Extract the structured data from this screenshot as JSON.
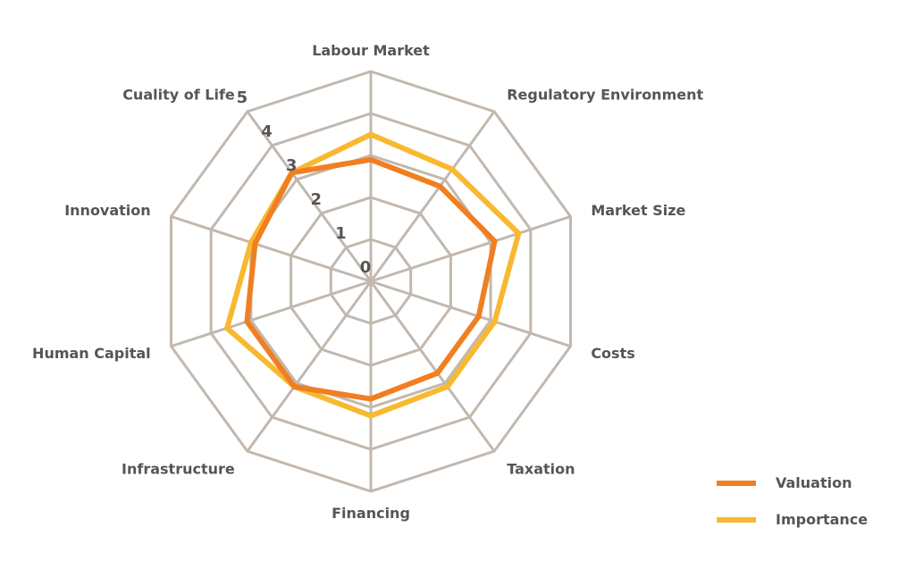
{
  "chart_data": {
    "type": "radar",
    "categories": [
      "Labour Market",
      "Regulatory Environment",
      "Market Size",
      "Costs",
      "Taxation",
      "Financing",
      "Infrastructure",
      "Human Capital",
      "Innovation",
      "Cuality of Life"
    ],
    "rlim": [
      0,
      5
    ],
    "ticks": [
      "0",
      "1",
      "2",
      "3",
      "4",
      "5"
    ],
    "series": [
      {
        "name": "Valuation",
        "color": "#F07F22",
        "values": [
          2.9,
          2.8,
          3.1,
          2.7,
          2.7,
          2.8,
          3.1,
          3.1,
          2.9,
          3.2
        ]
      },
      {
        "name": "Importance",
        "color": "#F8B830",
        "values": [
          3.5,
          3.3,
          3.7,
          3.1,
          3.1,
          3.2,
          3.1,
          3.6,
          3.0,
          3.2
        ]
      }
    ],
    "legend_position": "bottom-right",
    "grid": true
  }
}
